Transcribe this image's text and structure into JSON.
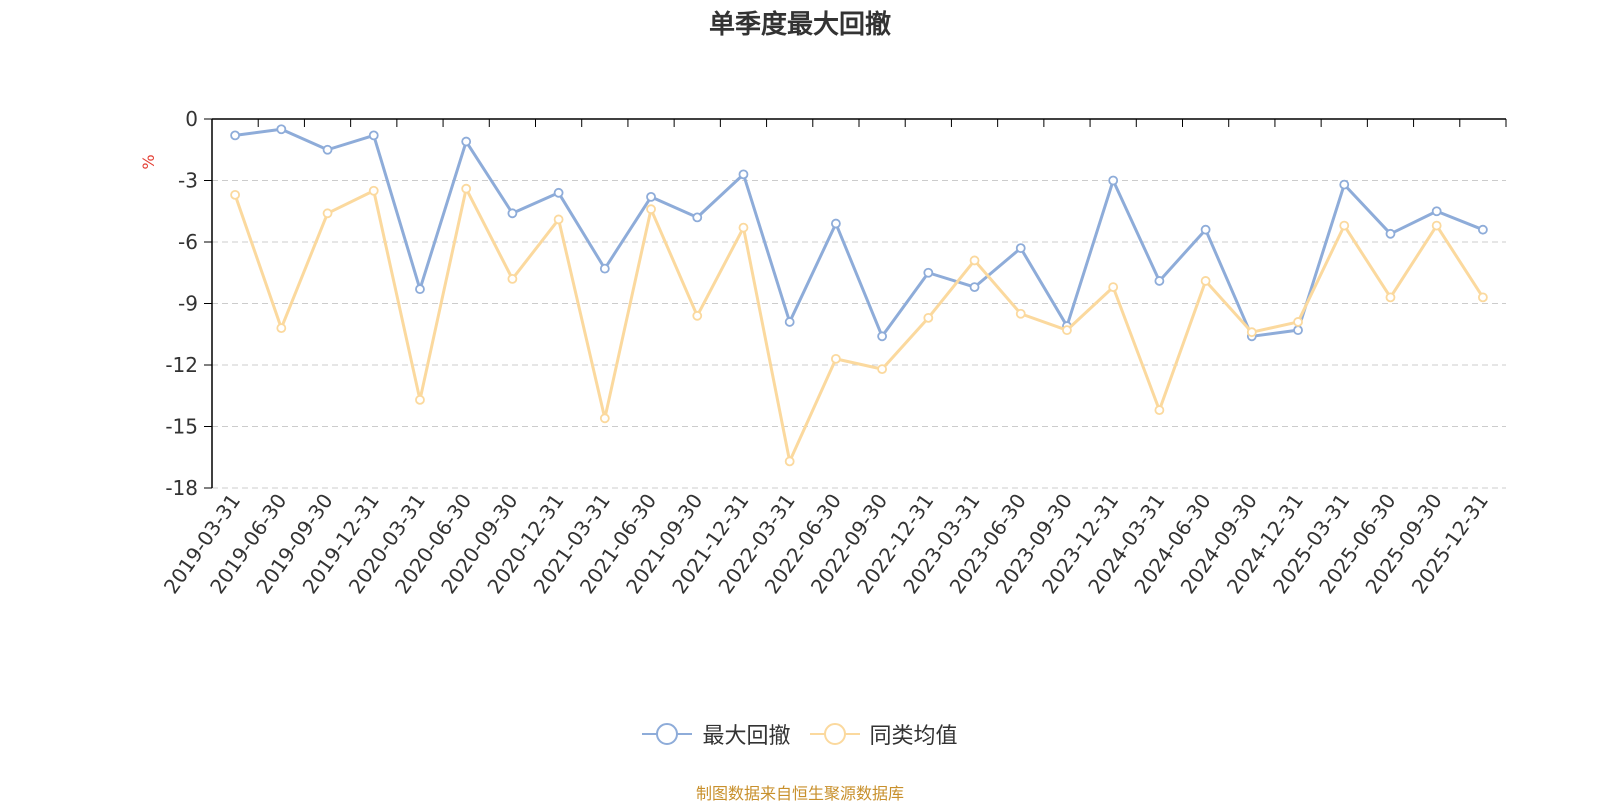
{
  "chart_data": {
    "type": "line",
    "title": "单季度最大回撤",
    "ylabel": "%",
    "xlabel": "",
    "ylim": [
      -18,
      0
    ],
    "yticks": [
      0,
      -3,
      -6,
      -9,
      -12,
      -15,
      -18
    ],
    "grid": true,
    "legend_position": "bottom",
    "categories": [
      "2019-03-31",
      "2019-06-30",
      "2019-09-30",
      "2019-12-31",
      "2020-03-31",
      "2020-06-30",
      "2020-09-30",
      "2020-12-31",
      "2021-03-31",
      "2021-06-30",
      "2021-09-30",
      "2021-12-31",
      "2022-03-31",
      "2022-06-30",
      "2022-09-30",
      "2022-12-31",
      "2023-03-31",
      "2023-06-30",
      "2023-09-30",
      "2023-12-31",
      "2024-03-31",
      "2024-06-30",
      "2024-09-30",
      "2024-12-31",
      "2025-03-31",
      "2025-06-30",
      "2025-09-30",
      "2025-12-31"
    ],
    "series": [
      {
        "name": "最大回撤",
        "color": "#8eacd9",
        "values": [
          -0.8,
          -0.5,
          -1.5,
          -0.8,
          -8.3,
          -1.1,
          -4.6,
          -3.6,
          -7.3,
          -3.8,
          -4.8,
          -2.7,
          -9.9,
          -5.1,
          -10.6,
          -7.5,
          -8.2,
          -6.3,
          -10.1,
          -3.0,
          -7.9,
          -5.4,
          -10.6,
          -10.3,
          -3.2,
          -5.6,
          -4.5,
          -5.4
        ]
      },
      {
        "name": "同类均值",
        "color": "#fbd99e",
        "values": [
          -3.7,
          -10.2,
          -4.6,
          -3.5,
          -13.7,
          -3.4,
          -7.8,
          -4.9,
          -14.6,
          -4.4,
          -9.6,
          -5.3,
          -16.7,
          -11.7,
          -12.2,
          -9.7,
          -6.9,
          -9.5,
          -10.3,
          -8.2,
          -14.2,
          -7.9,
          -10.4,
          -9.9,
          -5.2,
          -8.7,
          -5.2,
          -8.7
        ]
      }
    ]
  },
  "legend": {
    "items": [
      {
        "label": "最大回撤",
        "color": "#8eacd9"
      },
      {
        "label": "同类均值",
        "color": "#fbd99e"
      }
    ]
  },
  "source_note": "制图数据来自恒生聚源数据库",
  "colors": {
    "axis": "#000000",
    "grid": "#cccccc",
    "ylabel": "#e33e33",
    "tick_text": "#333333",
    "source_note": "#c8902c"
  }
}
